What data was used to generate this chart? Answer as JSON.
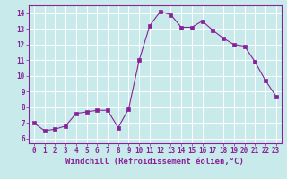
{
  "x": [
    0,
    1,
    2,
    3,
    4,
    5,
    6,
    7,
    8,
    9,
    10,
    11,
    12,
    13,
    14,
    15,
    16,
    17,
    18,
    19,
    20,
    21,
    22,
    23
  ],
  "y": [
    7.0,
    6.5,
    6.6,
    6.8,
    7.6,
    7.7,
    7.8,
    7.8,
    6.7,
    7.9,
    11.0,
    13.2,
    14.1,
    13.9,
    13.1,
    13.1,
    13.5,
    12.9,
    12.4,
    12.0,
    11.9,
    10.9,
    9.7,
    8.7
  ],
  "line_color": "#882299",
  "marker": "s",
  "marker_size": 2.2,
  "bg_color": "#c8eaea",
  "grid_color": "#ffffff",
  "xlabel": "Windchill (Refroidissement éolien,°C)",
  "xlabel_color": "#882299",
  "tick_color": "#882299",
  "spine_color": "#882299",
  "ylim": [
    5.7,
    14.5
  ],
  "xlim": [
    -0.5,
    23.5
  ],
  "yticks": [
    6,
    7,
    8,
    9,
    10,
    11,
    12,
    13,
    14
  ],
  "xticks": [
    0,
    1,
    2,
    3,
    4,
    5,
    6,
    7,
    8,
    9,
    10,
    11,
    12,
    13,
    14,
    15,
    16,
    17,
    18,
    19,
    20,
    21,
    22,
    23
  ],
  "tick_fontsize": 5.5,
  "xlabel_fontsize": 6.5,
  "linewidth": 0.8
}
